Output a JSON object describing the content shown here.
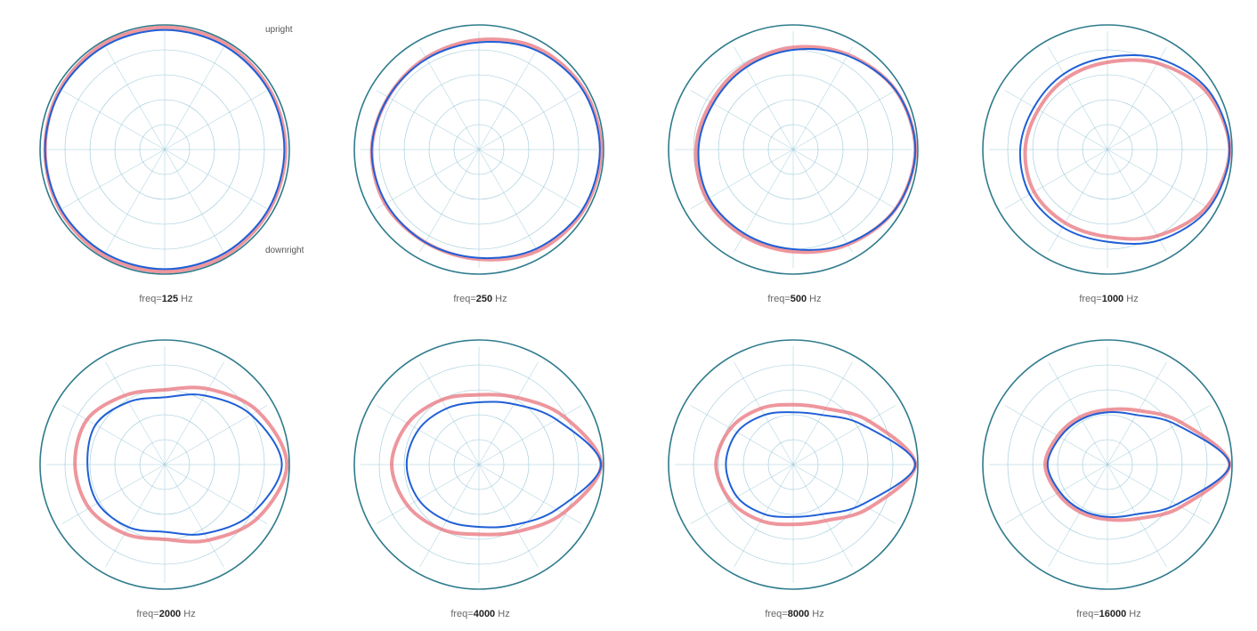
{
  "figure": {
    "annotations": {
      "upright": "upright",
      "downright": "downright"
    },
    "colors": {
      "ring": "#2e7b8c",
      "grid": "#9ac8d8",
      "series_a": "#e8737c",
      "series_b": "#1f5fd6"
    }
  },
  "chart_data": [
    {
      "type": "polar",
      "caption_prefix": "freq",
      "freq": "125",
      "unit": "Hz",
      "theta_deg": [
        0,
        30,
        60,
        90,
        120,
        150,
        180,
        210,
        240,
        270,
        300,
        330
      ],
      "series": [
        {
          "color": "#e8737c",
          "r": [
            0.97,
            0.97,
            0.98,
            0.98,
            0.98,
            0.97,
            0.96,
            0.97,
            0.98,
            0.98,
            0.98,
            0.97
          ]
        },
        {
          "color": "#1f5fd6",
          "r": [
            0.96,
            0.96,
            0.96,
            0.96,
            0.96,
            0.96,
            0.96,
            0.96,
            0.96,
            0.96,
            0.96,
            0.96
          ]
        }
      ]
    },
    {
      "type": "polar",
      "caption_prefix": "freq",
      "freq": "250",
      "unit": "Hz",
      "theta_deg": [
        0,
        30,
        60,
        90,
        120,
        150,
        180,
        210,
        240,
        270,
        300,
        330
      ],
      "series": [
        {
          "color": "#e8737c",
          "r": [
            0.98,
            0.97,
            0.94,
            0.88,
            0.85,
            0.84,
            0.86,
            0.87,
            0.86,
            0.88,
            0.94,
            0.97
          ]
        },
        {
          "color": "#1f5fd6",
          "r": [
            0.97,
            0.96,
            0.92,
            0.86,
            0.84,
            0.84,
            0.86,
            0.86,
            0.86,
            0.87,
            0.92,
            0.96
          ]
        }
      ]
    },
    {
      "type": "polar",
      "caption_prefix": "freq",
      "freq": "500",
      "unit": "Hz",
      "theta_deg": [
        0,
        30,
        60,
        90,
        120,
        150,
        180,
        210,
        240,
        270,
        300,
        330
      ],
      "series": [
        {
          "color": "#e8737c",
          "r": [
            0.98,
            0.95,
            0.88,
            0.82,
            0.78,
            0.76,
            0.78,
            0.8,
            0.8,
            0.82,
            0.88,
            0.95
          ]
        },
        {
          "color": "#1f5fd6",
          "r": [
            0.98,
            0.95,
            0.87,
            0.8,
            0.76,
            0.74,
            0.76,
            0.78,
            0.78,
            0.8,
            0.87,
            0.95
          ]
        }
      ]
    },
    {
      "type": "polar",
      "caption_prefix": "freq",
      "freq": "1000",
      "unit": "Hz",
      "theta_deg": [
        0,
        30,
        60,
        90,
        120,
        150,
        180,
        210,
        240,
        270,
        300,
        330
      ],
      "series": [
        {
          "color": "#e8737c",
          "r": [
            0.98,
            0.92,
            0.8,
            0.7,
            0.66,
            0.64,
            0.66,
            0.68,
            0.68,
            0.7,
            0.8,
            0.92
          ]
        },
        {
          "color": "#1f5fd6",
          "r": [
            0.98,
            0.94,
            0.84,
            0.74,
            0.7,
            0.68,
            0.7,
            0.72,
            0.72,
            0.74,
            0.84,
            0.94
          ]
        }
      ]
    },
    {
      "type": "polar",
      "caption_prefix": "freq",
      "freq": "2000",
      "unit": "Hz",
      "theta_deg": [
        0,
        30,
        60,
        90,
        120,
        150,
        180,
        210,
        240,
        270,
        300,
        330
      ],
      "series": [
        {
          "color": "#e8737c",
          "r": [
            0.98,
            0.86,
            0.7,
            0.6,
            0.64,
            0.72,
            0.72,
            0.7,
            0.64,
            0.6,
            0.7,
            0.86
          ]
        },
        {
          "color": "#1f5fd6",
          "r": [
            0.94,
            0.8,
            0.64,
            0.54,
            0.58,
            0.64,
            0.62,
            0.62,
            0.58,
            0.54,
            0.64,
            0.8
          ]
        }
      ]
    },
    {
      "type": "polar",
      "caption_prefix": "freq",
      "freq": "4000",
      "unit": "Hz",
      "theta_deg": [
        0,
        30,
        60,
        90,
        120,
        150,
        180,
        210,
        240,
        270,
        300,
        330
      ],
      "series": [
        {
          "color": "#e8737c",
          "r": [
            0.98,
            0.78,
            0.62,
            0.56,
            0.6,
            0.66,
            0.7,
            0.66,
            0.6,
            0.56,
            0.62,
            0.78
          ]
        },
        {
          "color": "#1f5fd6",
          "r": [
            0.98,
            0.72,
            0.56,
            0.5,
            0.52,
            0.56,
            0.58,
            0.56,
            0.52,
            0.5,
            0.56,
            0.72
          ]
        }
      ]
    },
    {
      "type": "polar",
      "caption_prefix": "freq",
      "freq": "8000",
      "unit": "Hz",
      "theta_deg": [
        0,
        30,
        60,
        90,
        120,
        150,
        180,
        210,
        240,
        270,
        300,
        330
      ],
      "series": [
        {
          "color": "#e8737c",
          "r": [
            0.98,
            0.7,
            0.52,
            0.48,
            0.52,
            0.58,
            0.62,
            0.58,
            0.52,
            0.48,
            0.52,
            0.7
          ]
        },
        {
          "color": "#1f5fd6",
          "r": [
            0.98,
            0.64,
            0.46,
            0.42,
            0.46,
            0.52,
            0.54,
            0.52,
            0.46,
            0.42,
            0.46,
            0.64
          ]
        }
      ]
    },
    {
      "type": "polar",
      "caption_prefix": "freq",
      "freq": "16000",
      "unit": "Hz",
      "theta_deg": [
        0,
        30,
        60,
        90,
        120,
        150,
        180,
        210,
        240,
        270,
        300,
        330
      ],
      "series": [
        {
          "color": "#e8737c",
          "r": [
            0.98,
            0.68,
            0.5,
            0.44,
            0.44,
            0.46,
            0.5,
            0.46,
            0.44,
            0.44,
            0.5,
            0.68
          ]
        },
        {
          "color": "#1f5fd6",
          "r": [
            0.98,
            0.64,
            0.46,
            0.42,
            0.42,
            0.44,
            0.48,
            0.44,
            0.42,
            0.42,
            0.46,
            0.64
          ]
        }
      ]
    }
  ]
}
